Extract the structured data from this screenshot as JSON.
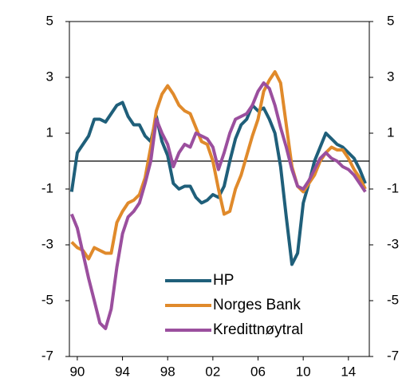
{
  "chart_data": {
    "type": "line",
    "x": [
      1989.5,
      1990,
      1990.5,
      1991,
      1991.5,
      1992,
      1992.5,
      1993,
      1993.5,
      1994,
      1994.5,
      1995,
      1995.5,
      1996,
      1996.5,
      1997,
      1997.5,
      1998,
      1998.5,
      1999,
      1999.5,
      2000,
      2000.5,
      2001,
      2001.5,
      2002,
      2002.5,
      2003,
      2003.5,
      2004,
      2004.5,
      2005,
      2005.5,
      2006,
      2006.5,
      2007,
      2007.5,
      2008,
      2008.5,
      2009,
      2009.5,
      2010,
      2010.5,
      2011,
      2011.5,
      2012,
      2012.5,
      2013,
      2013.5,
      2014,
      2014.5,
      2015,
      2015.5
    ],
    "series": [
      {
        "name": "HP",
        "color": "#1f5f7a",
        "values": [
          -1.1,
          0.3,
          0.6,
          0.9,
          1.5,
          1.5,
          1.4,
          1.7,
          2.0,
          2.1,
          1.6,
          1.3,
          1.3,
          0.9,
          0.7,
          1.6,
          0.7,
          0.2,
          -0.8,
          -1.0,
          -0.9,
          -0.9,
          -1.3,
          -1.5,
          -1.4,
          -1.2,
          -1.3,
          -0.9,
          0.0,
          0.8,
          1.3,
          1.5,
          2.0,
          1.8,
          1.9,
          1.5,
          1.0,
          -0.2,
          -2.0,
          -3.7,
          -3.3,
          -1.5,
          -0.8,
          0.0,
          0.5,
          1.0,
          0.8,
          0.6,
          0.5,
          0.3,
          0.1,
          -0.3,
          -0.8
        ]
      },
      {
        "name": "Norges Bank",
        "color": "#e08a2b",
        "values": [
          -2.9,
          -3.1,
          -3.2,
          -3.5,
          -3.1,
          -3.2,
          -3.3,
          -3.3,
          -2.2,
          -1.8,
          -1.5,
          -1.4,
          -1.2,
          -0.6,
          0.5,
          1.8,
          2.4,
          2.7,
          2.4,
          2.0,
          1.8,
          1.7,
          1.2,
          0.7,
          0.6,
          0.0,
          -1.0,
          -1.9,
          -1.8,
          -1.0,
          -0.5,
          0.2,
          0.9,
          1.5,
          2.5,
          2.9,
          3.2,
          2.8,
          1.3,
          -0.2,
          -0.9,
          -1.1,
          -0.8,
          -0.5,
          0.0,
          0.3,
          0.5,
          0.4,
          0.4,
          0.1,
          -0.3,
          -0.6,
          -1.0
        ]
      },
      {
        "name": "Kredittnøytral",
        "color": "#9b4f9e",
        "values": [
          -1.9,
          -2.4,
          -3.3,
          -4.2,
          -5.0,
          -5.8,
          -6.0,
          -5.3,
          -3.8,
          -2.6,
          -2.0,
          -1.8,
          -1.5,
          -0.8,
          0.0,
          1.5,
          1.0,
          0.6,
          -0.2,
          0.3,
          0.6,
          0.5,
          1.0,
          0.9,
          0.8,
          0.5,
          -0.3,
          0.3,
          1.0,
          1.5,
          1.6,
          1.7,
          2.0,
          2.5,
          2.8,
          2.6,
          2.0,
          1.2,
          0.5,
          -0.3,
          -0.9,
          -1.0,
          -0.7,
          -0.3,
          0.1,
          0.3,
          0.1,
          0.0,
          -0.2,
          -0.3,
          -0.5,
          -0.8,
          -1.1
        ]
      }
    ],
    "xlim": [
      1989.3,
      2015.85
    ],
    "xticks": [
      {
        "value": 1990,
        "label": "90"
      },
      {
        "value": 1994,
        "label": "94"
      },
      {
        "value": 1998,
        "label": "98"
      },
      {
        "value": 2002,
        "label": "02"
      },
      {
        "value": 2006,
        "label": "06"
      },
      {
        "value": 2010,
        "label": "10"
      },
      {
        "value": 2014,
        "label": "14"
      }
    ],
    "ylim": [
      -7,
      5
    ],
    "yticks": [
      5,
      3,
      1,
      -1,
      -3,
      -5,
      -7
    ],
    "y2lim": [
      -7,
      5
    ],
    "y2ticks": [
      5,
      3,
      1,
      -1,
      -3,
      -5,
      -7
    ],
    "legend": "lower center"
  }
}
